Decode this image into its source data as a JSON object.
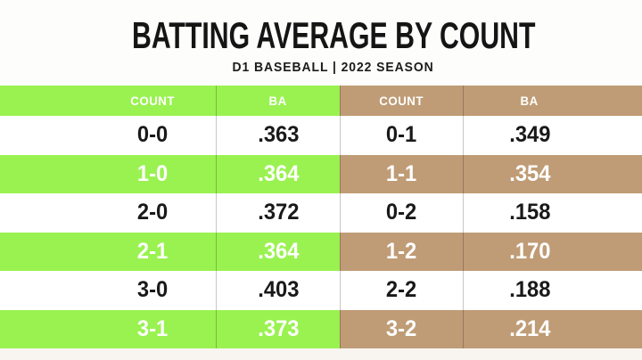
{
  "title": "BATTING AVERAGE BY COUNT",
  "subtitle": "D1 BASEBALL | 2022 SEASON",
  "colors": {
    "green": "#9AF251",
    "tan": "#BF9C76",
    "page_bg": "#FDFDFC",
    "bottom_strip": "#F8F5F1",
    "divider": "rgba(0,0,0,0.22)",
    "dark_text": "#191919",
    "light_text": "#FFFFFF"
  },
  "table": {
    "headers": {
      "left_count": "COUNT",
      "left_ba": "BA",
      "right_count": "COUNT",
      "right_ba": "BA"
    },
    "rows": [
      {
        "left_count": "0-0",
        "left_ba": ".363",
        "right_count": "0-1",
        "right_ba": ".349",
        "highlighted": false
      },
      {
        "left_count": "1-0",
        "left_ba": ".364",
        "right_count": "1-1",
        "right_ba": ".354",
        "highlighted": true
      },
      {
        "left_count": "2-0",
        "left_ba": ".372",
        "right_count": "0-2",
        "right_ba": ".158",
        "highlighted": false
      },
      {
        "left_count": "2-1",
        "left_ba": ".364",
        "right_count": "1-2",
        "right_ba": ".170",
        "highlighted": true
      },
      {
        "left_count": "3-0",
        "left_ba": ".403",
        "right_count": "2-2",
        "right_ba": ".188",
        "highlighted": false
      },
      {
        "left_count": "3-1",
        "left_ba": ".373",
        "right_count": "3-2",
        "right_ba": ".214",
        "highlighted": true
      }
    ]
  },
  "chart_data": {
    "type": "table",
    "title": "BATTING AVERAGE BY COUNT",
    "subtitle": "D1 BASEBALL | 2022 SEASON",
    "columns": [
      "COUNT",
      "BA",
      "COUNT",
      "BA"
    ],
    "rows": [
      [
        "0-0",
        ".363",
        "0-1",
        ".349"
      ],
      [
        "1-0",
        ".364",
        "1-1",
        ".354"
      ],
      [
        "2-0",
        ".372",
        "0-2",
        ".158"
      ],
      [
        "2-1",
        ".364",
        "1-2",
        ".170"
      ],
      [
        "3-0",
        ".403",
        "2-2",
        ".188"
      ],
      [
        "3-1",
        ".373",
        "3-2",
        ".214"
      ]
    ],
    "layout_hints": {
      "left_pair_theme": "green",
      "right_pair_theme": "tan",
      "striped_rows": "alternating white / colored"
    }
  }
}
